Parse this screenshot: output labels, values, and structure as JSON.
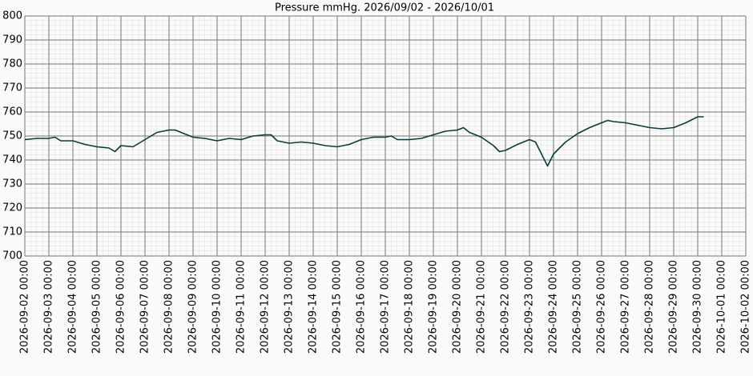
{
  "chart_data": {
    "type": "line",
    "title": "Pressure mmHg. 2026/09/02 - 2026/10/01",
    "x": [
      "2026-09-02 00:00",
      "2026-09-02 12:00",
      "2026-09-03 00:00",
      "2026-09-03 06:00",
      "2026-09-03 12:00",
      "2026-09-04 00:00",
      "2026-09-04 12:00",
      "2026-09-05 00:00",
      "2026-09-05 12:00",
      "2026-09-05 18:00",
      "2026-09-06 00:00",
      "2026-09-06 12:00",
      "2026-09-07 00:00",
      "2026-09-07 12:00",
      "2026-09-08 00:00",
      "2026-09-08 06:00",
      "2026-09-08 12:00",
      "2026-09-09 00:00",
      "2026-09-09 12:00",
      "2026-09-10 00:00",
      "2026-09-10 12:00",
      "2026-09-11 00:00",
      "2026-09-11 12:00",
      "2026-09-12 00:00",
      "2026-09-12 06:00",
      "2026-09-12 12:00",
      "2026-09-13 00:00",
      "2026-09-13 12:00",
      "2026-09-14 00:00",
      "2026-09-14 12:00",
      "2026-09-15 00:00",
      "2026-09-15 12:00",
      "2026-09-16 00:00",
      "2026-09-16 12:00",
      "2026-09-17 00:00",
      "2026-09-17 06:00",
      "2026-09-17 12:00",
      "2026-09-18 00:00",
      "2026-09-18 12:00",
      "2026-09-19 00:00",
      "2026-09-19 12:00",
      "2026-09-20 00:00",
      "2026-09-20 06:00",
      "2026-09-20 12:00",
      "2026-09-21 00:00",
      "2026-09-21 12:00",
      "2026-09-21 18:00",
      "2026-09-22 00:00",
      "2026-09-22 12:00",
      "2026-09-23 00:00",
      "2026-09-23 06:00",
      "2026-09-23 12:00",
      "2026-09-23 18:00",
      "2026-09-24 00:00",
      "2026-09-24 12:00",
      "2026-09-25 00:00",
      "2026-09-25 12:00",
      "2026-09-26 00:00",
      "2026-09-26 06:00",
      "2026-09-26 12:00",
      "2026-09-27 00:00",
      "2026-09-27 12:00",
      "2026-09-28 00:00",
      "2026-09-28 12:00",
      "2026-09-29 00:00",
      "2026-09-29 12:00",
      "2026-09-30 00:00",
      "2026-09-30 06:00"
    ],
    "series": [
      {
        "color": "#0b3b3b",
        "values": [
          748.5,
          749,
          749,
          749.5,
          748,
          748,
          746.5,
          745.5,
          745,
          743.5,
          746,
          745.5,
          748.5,
          751.5,
          752.5,
          752.5,
          751.5,
          749.5,
          749,
          748,
          749,
          748.5,
          750,
          750.5,
          750.5,
          748,
          747,
          747.5,
          747,
          746,
          745.5,
          746.5,
          748.5,
          749.5,
          749.5,
          750,
          748.5,
          748.5,
          749,
          750.5,
          752,
          752.5,
          753.5,
          751.5,
          749.5,
          746,
          743.5,
          744,
          746.5,
          748.5,
          747.5,
          742.5,
          737.5,
          742.5,
          747.5,
          751,
          753.5,
          755.5,
          756.5,
          756,
          755.5,
          754.5,
          753.5,
          753,
          753.5,
          755.5,
          758,
          758
        ]
      }
    ],
    "xlim": [
      "2026-09-02 00:00",
      "2026-10-02 00:00"
    ],
    "xticks": [
      "2026-09-02 00:00",
      "2026-09-03 00:00",
      "2026-09-04 00:00",
      "2026-09-05 00:00",
      "2026-09-06 00:00",
      "2026-09-07 00:00",
      "2026-09-08 00:00",
      "2026-09-09 00:00",
      "2026-09-10 00:00",
      "2026-09-11 00:00",
      "2026-09-12 00:00",
      "2026-09-13 00:00",
      "2026-09-14 00:00",
      "2026-09-15 00:00",
      "2026-09-16 00:00",
      "2026-09-17 00:00",
      "2026-09-18 00:00",
      "2026-09-19 00:00",
      "2026-09-20 00:00",
      "2026-09-21 00:00",
      "2026-09-22 00:00",
      "2026-09-23 00:00",
      "2026-09-24 00:00",
      "2026-09-25 00:00",
      "2026-09-26 00:00",
      "2026-09-27 00:00",
      "2026-09-28 00:00",
      "2026-09-29 00:00",
      "2026-09-30 00:00",
      "2026-10-01 00:00",
      "2026-10-02 00:00"
    ],
    "ylim": [
      700,
      800
    ],
    "yticks": [
      700,
      710,
      720,
      730,
      740,
      750,
      760,
      770,
      780,
      790,
      800
    ],
    "grid": true
  }
}
